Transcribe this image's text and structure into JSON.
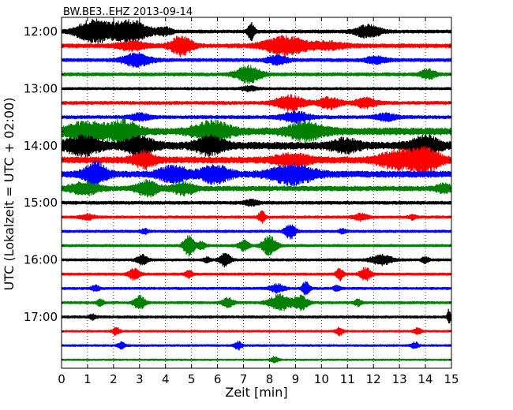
{
  "chart_data": {
    "type": "line",
    "title": "BW.BE3..EHZ 2013-09-14",
    "xlabel": "Zeit  [min]",
    "ylabel": "UTC (Lokalzeit = UTC + 02:00)",
    "xlim": [
      0,
      15
    ],
    "x_ticks": [
      "0",
      "1",
      "2",
      "3",
      "4",
      "5",
      "6",
      "7",
      "8",
      "9",
      "10",
      "11",
      "12",
      "13",
      "14",
      "15"
    ],
    "y_ticks": [
      "12:00",
      "13:00",
      "14:00",
      "15:00",
      "16:00",
      "17:00"
    ],
    "grid": "vertical dotted lines at each minute",
    "trace_interval_min": 15,
    "line_colors": [
      "#000000",
      "#ff0000",
      "#0000ff",
      "#008000"
    ],
    "series": [
      {
        "start": "12:00",
        "color": "#000000",
        "base": 2.0,
        "events": [
          {
            "t": 1.2,
            "amp": 14,
            "w": 0.45
          },
          {
            "t": 2.6,
            "amp": 14,
            "w": 0.55
          },
          {
            "t": 4.0,
            "amp": 4,
            "w": 0.2
          },
          {
            "t": 7.3,
            "amp": 10,
            "w": 0.1
          },
          {
            "t": 11.8,
            "amp": 8,
            "w": 0.35
          }
        ]
      },
      {
        "start": "12:15",
        "color": "#ff0000",
        "base": 2.5,
        "events": [
          {
            "t": 2.7,
            "amp": 5,
            "w": 0.4
          },
          {
            "t": 4.6,
            "amp": 12,
            "w": 0.3
          },
          {
            "t": 8.6,
            "amp": 11,
            "w": 0.6
          },
          {
            "t": 10.3,
            "amp": 4,
            "w": 0.5
          }
        ]
      },
      {
        "start": "12:30",
        "color": "#0000ff",
        "base": 2.0,
        "events": [
          {
            "t": 2.9,
            "amp": 8,
            "w": 0.4
          },
          {
            "t": 8.3,
            "amp": 5,
            "w": 0.3
          },
          {
            "t": 12.1,
            "amp": 4,
            "w": 0.3
          }
        ]
      },
      {
        "start": "12:45",
        "color": "#008000",
        "base": 2.0,
        "events": [
          {
            "t": 7.2,
            "amp": 10,
            "w": 0.35
          },
          {
            "t": 14.1,
            "amp": 6,
            "w": 0.2
          }
        ]
      },
      {
        "start": "13:00",
        "color": "#000000",
        "base": 1.5,
        "events": [
          {
            "t": 7.2,
            "amp": 3,
            "w": 0.2
          }
        ]
      },
      {
        "start": "13:15",
        "color": "#ff0000",
        "base": 2.0,
        "events": [
          {
            "t": 8.8,
            "amp": 9,
            "w": 0.4
          },
          {
            "t": 10.3,
            "amp": 7,
            "w": 0.3
          },
          {
            "t": 11.7,
            "amp": 6,
            "w": 0.3
          }
        ]
      },
      {
        "start": "13:30",
        "color": "#0000ff",
        "base": 2.0,
        "events": [
          {
            "t": 3.0,
            "amp": 4,
            "w": 0.3
          },
          {
            "t": 9.0,
            "amp": 6,
            "w": 0.4
          },
          {
            "t": 12.5,
            "amp": 4,
            "w": 0.3
          }
        ]
      },
      {
        "start": "13:45",
        "color": "#008000",
        "base": 4.5,
        "events": [
          {
            "t": 1.0,
            "amp": 10,
            "w": 0.6
          },
          {
            "t": 2.4,
            "amp": 11,
            "w": 0.4
          },
          {
            "t": 5.8,
            "amp": 11,
            "w": 0.5
          },
          {
            "t": 9.4,
            "amp": 10,
            "w": 0.5
          }
        ]
      },
      {
        "start": "14:00",
        "color": "#000000",
        "base": 4.5,
        "events": [
          {
            "t": 0.8,
            "amp": 10,
            "w": 0.5
          },
          {
            "t": 3.0,
            "amp": 10,
            "w": 0.4
          },
          {
            "t": 5.7,
            "amp": 10,
            "w": 0.4
          },
          {
            "t": 10.9,
            "amp": 7,
            "w": 0.4
          },
          {
            "t": 14.0,
            "amp": 10,
            "w": 0.4
          }
        ]
      },
      {
        "start": "14:15",
        "color": "#ff0000",
        "base": 4.0,
        "events": [
          {
            "t": 3.2,
            "amp": 9,
            "w": 0.3
          },
          {
            "t": 8.9,
            "amp": 6,
            "w": 0.5
          },
          {
            "t": 12.9,
            "amp": 10,
            "w": 0.5
          },
          {
            "t": 14.0,
            "amp": 14,
            "w": 0.4
          }
        ]
      },
      {
        "start": "14:30",
        "color": "#0000ff",
        "base": 4.0,
        "events": [
          {
            "t": 1.3,
            "amp": 14,
            "w": 0.3
          },
          {
            "t": 4.3,
            "amp": 9,
            "w": 0.4
          },
          {
            "t": 5.9,
            "amp": 10,
            "w": 0.4
          },
          {
            "t": 8.9,
            "amp": 11,
            "w": 0.6
          }
        ]
      },
      {
        "start": "14:45",
        "color": "#008000",
        "base": 3.0,
        "events": [
          {
            "t": 0.9,
            "amp": 7,
            "w": 0.4
          },
          {
            "t": 3.3,
            "amp": 9,
            "w": 0.3
          },
          {
            "t": 4.7,
            "amp": 7,
            "w": 0.3
          },
          {
            "t": 14.7,
            "amp": 5,
            "w": 0.2
          }
        ]
      },
      {
        "start": "15:00",
        "color": "#000000",
        "base": 2.0,
        "events": [
          {
            "t": 7.3,
            "amp": 3,
            "w": 0.2
          }
        ]
      },
      {
        "start": "15:15",
        "color": "#ff0000",
        "base": 1.5,
        "events": [
          {
            "t": 1.0,
            "amp": 3,
            "w": 0.2
          },
          {
            "t": 7.7,
            "amp": 7,
            "w": 0.1
          },
          {
            "t": 11.5,
            "amp": 4,
            "w": 0.2
          },
          {
            "t": 13.5,
            "amp": 3,
            "w": 0.1
          }
        ]
      },
      {
        "start": "15:30",
        "color": "#0000ff",
        "base": 1.5,
        "events": [
          {
            "t": 3.2,
            "amp": 3,
            "w": 0.1
          },
          {
            "t": 8.8,
            "amp": 9,
            "w": 0.15
          },
          {
            "t": 10.8,
            "amp": 3,
            "w": 0.1
          }
        ]
      },
      {
        "start": "15:45",
        "color": "#008000",
        "base": 1.5,
        "events": [
          {
            "t": 4.9,
            "amp": 14,
            "w": 0.15
          },
          {
            "t": 5.4,
            "amp": 5,
            "w": 0.1
          },
          {
            "t": 7.0,
            "amp": 6,
            "w": 0.15
          },
          {
            "t": 8.0,
            "amp": 12,
            "w": 0.2
          }
        ]
      },
      {
        "start": "16:00",
        "color": "#000000",
        "base": 1.5,
        "events": [
          {
            "t": 3.1,
            "amp": 6,
            "w": 0.15
          },
          {
            "t": 5.6,
            "amp": 3,
            "w": 0.1
          },
          {
            "t": 6.3,
            "amp": 8,
            "w": 0.15
          },
          {
            "t": 12.3,
            "amp": 6,
            "w": 0.3
          },
          {
            "t": 14.0,
            "amp": 4,
            "w": 0.1
          }
        ]
      },
      {
        "start": "16:15",
        "color": "#ff0000",
        "base": 1.5,
        "events": [
          {
            "t": 2.8,
            "amp": 7,
            "w": 0.15
          },
          {
            "t": 4.9,
            "amp": 4,
            "w": 0.1
          },
          {
            "t": 10.7,
            "amp": 8,
            "w": 0.1
          },
          {
            "t": 11.7,
            "amp": 8,
            "w": 0.15
          }
        ]
      },
      {
        "start": "16:30",
        "color": "#0000ff",
        "base": 1.5,
        "events": [
          {
            "t": 1.3,
            "amp": 4,
            "w": 0.1
          },
          {
            "t": 8.3,
            "amp": 5,
            "w": 0.2
          },
          {
            "t": 9.4,
            "amp": 9,
            "w": 0.1
          },
          {
            "t": 10.6,
            "amp": 3,
            "w": 0.1
          }
        ]
      },
      {
        "start": "16:45",
        "color": "#008000",
        "base": 1.5,
        "events": [
          {
            "t": 1.5,
            "amp": 4,
            "w": 0.1
          },
          {
            "t": 3.0,
            "amp": 9,
            "w": 0.15
          },
          {
            "t": 6.4,
            "amp": 6,
            "w": 0.15
          },
          {
            "t": 8.4,
            "amp": 10,
            "w": 0.3
          },
          {
            "t": 9.2,
            "amp": 9,
            "w": 0.2
          },
          {
            "t": 11.4,
            "amp": 4,
            "w": 0.1
          }
        ]
      },
      {
        "start": "17:00",
        "color": "#000000",
        "base": 1.5,
        "events": [
          {
            "t": 1.2,
            "amp": 3,
            "w": 0.1
          },
          {
            "t": 14.9,
            "amp": 9,
            "w": 0.05
          }
        ]
      },
      {
        "start": "17:15",
        "color": "#ff0000",
        "base": 1.2,
        "events": [
          {
            "t": 2.1,
            "amp": 5,
            "w": 0.1
          },
          {
            "t": 10.7,
            "amp": 5,
            "w": 0.1
          },
          {
            "t": 13.7,
            "amp": 4,
            "w": 0.1
          }
        ]
      },
      {
        "start": "17:30",
        "color": "#0000ff",
        "base": 1.2,
        "events": [
          {
            "t": 2.3,
            "amp": 4,
            "w": 0.1
          },
          {
            "t": 6.8,
            "amp": 5,
            "w": 0.1
          },
          {
            "t": 13.6,
            "amp": 4,
            "w": 0.1
          }
        ]
      },
      {
        "start": "17:45",
        "color": "#008000",
        "base": 1.0,
        "events": [
          {
            "t": 8.2,
            "amp": 4,
            "w": 0.1
          }
        ]
      }
    ]
  }
}
